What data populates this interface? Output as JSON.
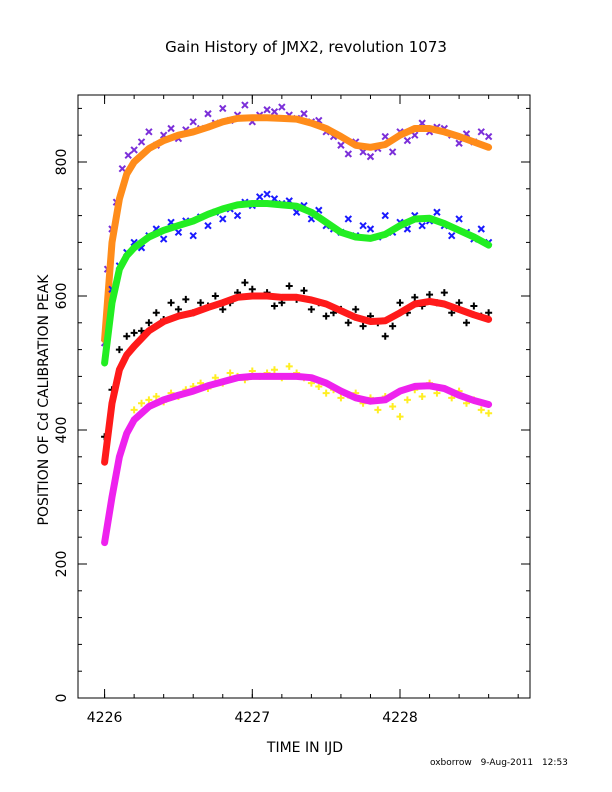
{
  "chart_data": {
    "type": "scatter",
    "title": "Gain History of JMX2, revolution 1073",
    "xlabel": "TIME IN IJD",
    "ylabel": "POSITION OF Cd CALIBRATION PEAK",
    "xlim": [
      4225.82,
      4228.88
    ],
    "ylim": [
      0,
      900
    ],
    "x_ticks": [
      4226,
      4227,
      4228
    ],
    "y_ticks": [
      0,
      200,
      400,
      600,
      800
    ],
    "grid": false,
    "legend": "none",
    "footer": {
      "user": "oxborrow",
      "date": "9-Aug-2011",
      "time": "12:53"
    },
    "series": [
      {
        "color": "#7b2fd9",
        "marker": "x",
        "role": "points",
        "x": [
          4226.0,
          4226.02,
          4226.05,
          4226.08,
          4226.12,
          4226.16,
          4226.2,
          4226.25,
          4226.3,
          4226.35,
          4226.4,
          4226.45,
          4226.5,
          4226.55,
          4226.6,
          4226.65,
          4226.7,
          4226.75,
          4226.8,
          4226.85,
          4226.9,
          4226.95,
          4227.0,
          4227.05,
          4227.1,
          4227.15,
          4227.2,
          4227.25,
          4227.3,
          4227.35,
          4227.4,
          4227.45,
          4227.5,
          4227.55,
          4227.6,
          4227.65,
          4227.7,
          4227.75,
          4227.8,
          4227.85,
          4227.9,
          4227.95,
          4228.0,
          4228.05,
          4228.1,
          4228.15,
          4228.2,
          4228.25,
          4228.3,
          4228.35,
          4228.4,
          4228.45,
          4228.5,
          4228.55,
          4228.6
        ],
        "y": [
          530,
          640,
          700,
          740,
          790,
          810,
          818,
          830,
          845,
          825,
          840,
          850,
          835,
          848,
          860,
          850,
          872,
          858,
          880,
          862,
          870,
          885,
          860,
          870,
          878,
          875,
          882,
          870,
          865,
          872,
          860,
          862,
          845,
          838,
          825,
          812,
          830,
          815,
          808,
          820,
          838,
          815,
          845,
          832,
          840,
          858,
          845,
          852,
          850,
          840,
          828,
          842,
          830,
          845,
          838
        ]
      },
      {
        "color": "#ff8c1a",
        "marker": "line",
        "role": "fit",
        "x": [
          4226.0,
          4226.05,
          4226.1,
          4226.15,
          4226.2,
          4226.3,
          4226.4,
          4226.5,
          4226.6,
          4226.7,
          4226.8,
          4226.9,
          4227.0,
          4227.1,
          4227.2,
          4227.3,
          4227.4,
          4227.5,
          4227.6,
          4227.7,
          4227.8,
          4227.9,
          4228.0,
          4228.1,
          4228.2,
          4228.3,
          4228.4,
          4228.5,
          4228.6
        ],
        "y": [
          535,
          680,
          745,
          782,
          800,
          820,
          832,
          840,
          845,
          852,
          860,
          865,
          866,
          866,
          865,
          864,
          858,
          850,
          838,
          825,
          822,
          826,
          840,
          850,
          850,
          845,
          838,
          830,
          822
        ]
      },
      {
        "color": "#1a1aff",
        "marker": "x",
        "role": "points",
        "x": [
          4226.05,
          4226.1,
          4226.15,
          4226.2,
          4226.25,
          4226.3,
          4226.35,
          4226.4,
          4226.45,
          4226.5,
          4226.55,
          4226.6,
          4226.65,
          4226.7,
          4226.75,
          4226.8,
          4226.85,
          4226.9,
          4226.95,
          4227.0,
          4227.05,
          4227.1,
          4227.15,
          4227.2,
          4227.25,
          4227.3,
          4227.35,
          4227.4,
          4227.45,
          4227.5,
          4227.55,
          4227.6,
          4227.65,
          4227.7,
          4227.75,
          4227.8,
          4227.85,
          4227.9,
          4227.95,
          4228.0,
          4228.05,
          4228.1,
          4228.15,
          4228.2,
          4228.25,
          4228.3,
          4228.35,
          4228.4,
          4228.45,
          4228.5,
          4228.55,
          4228.6
        ],
        "y": [
          610,
          645,
          665,
          680,
          672,
          690,
          700,
          685,
          710,
          695,
          712,
          690,
          718,
          705,
          725,
          715,
          730,
          720,
          740,
          735,
          748,
          752,
          745,
          738,
          742,
          725,
          735,
          715,
          728,
          705,
          700,
          695,
          715,
          690,
          705,
          700,
          688,
          720,
          695,
          710,
          700,
          720,
          705,
          712,
          725,
          705,
          690,
          715,
          695,
          685,
          700,
          680
        ]
      },
      {
        "color": "#22ee22",
        "marker": "line",
        "role": "fit",
        "x": [
          4226.0,
          4226.05,
          4226.1,
          4226.15,
          4226.2,
          4226.3,
          4226.4,
          4226.5,
          4226.6,
          4226.7,
          4226.8,
          4226.9,
          4227.0,
          4227.1,
          4227.2,
          4227.3,
          4227.4,
          4227.5,
          4227.6,
          4227.7,
          4227.8,
          4227.9,
          4228.0,
          4228.1,
          4228.2,
          4228.3,
          4228.4,
          4228.5,
          4228.6
        ],
        "y": [
          500,
          590,
          640,
          660,
          672,
          688,
          698,
          705,
          712,
          722,
          730,
          736,
          738,
          738,
          736,
          734,
          725,
          710,
          695,
          688,
          686,
          692,
          705,
          715,
          716,
          708,
          698,
          688,
          676
        ]
      },
      {
        "color": "#000000",
        "marker": "+",
        "role": "points",
        "x": [
          4226.0,
          4226.05,
          4226.1,
          4226.15,
          4226.2,
          4226.25,
          4226.3,
          4226.35,
          4226.4,
          4226.45,
          4226.5,
          4226.55,
          4226.6,
          4226.65,
          4226.7,
          4226.75,
          4226.8,
          4226.85,
          4226.9,
          4226.95,
          4227.0,
          4227.05,
          4227.1,
          4227.15,
          4227.2,
          4227.25,
          4227.3,
          4227.35,
          4227.4,
          4227.45,
          4227.5,
          4227.55,
          4227.6,
          4227.65,
          4227.7,
          4227.75,
          4227.8,
          4227.85,
          4227.9,
          4227.95,
          4228.0,
          4228.05,
          4228.1,
          4228.15,
          4228.2,
          4228.25,
          4228.3,
          4228.35,
          4228.4,
          4228.45,
          4228.5,
          4228.55,
          4228.6
        ],
        "y": [
          390,
          460,
          520,
          540,
          545,
          548,
          560,
          575,
          565,
          590,
          580,
          595,
          575,
          590,
          585,
          600,
          580,
          590,
          605,
          620,
          610,
          600,
          605,
          585,
          590,
          615,
          595,
          608,
          580,
          590,
          570,
          575,
          580,
          560,
          580,
          555,
          570,
          560,
          540,
          555,
          590,
          575,
          598,
          585,
          602,
          590,
          605,
          575,
          590,
          560,
          585,
          570,
          575
        ]
      },
      {
        "color": "#ff1a1a",
        "marker": "line",
        "role": "fit",
        "x": [
          4226.0,
          4226.05,
          4226.1,
          4226.15,
          4226.2,
          4226.3,
          4226.4,
          4226.5,
          4226.6,
          4226.7,
          4226.8,
          4226.9,
          4227.0,
          4227.1,
          4227.2,
          4227.3,
          4227.4,
          4227.5,
          4227.6,
          4227.7,
          4227.8,
          4227.9,
          4228.0,
          4228.1,
          4228.2,
          4228.3,
          4228.4,
          4228.5,
          4228.6
        ],
        "y": [
          352,
          440,
          490,
          512,
          525,
          548,
          562,
          570,
          575,
          583,
          590,
          598,
          600,
          600,
          598,
          598,
          594,
          588,
          578,
          568,
          562,
          563,
          575,
          588,
          592,
          588,
          580,
          572,
          565
        ]
      },
      {
        "color": "#ffee22",
        "marker": "+",
        "role": "points",
        "x": [
          4226.2,
          4226.25,
          4226.3,
          4226.35,
          4226.4,
          4226.45,
          4226.5,
          4226.55,
          4226.6,
          4226.65,
          4226.7,
          4226.75,
          4226.8,
          4226.85,
          4226.9,
          4226.95,
          4227.0,
          4227.05,
          4227.1,
          4227.15,
          4227.2,
          4227.25,
          4227.3,
          4227.35,
          4227.4,
          4227.45,
          4227.5,
          4227.55,
          4227.6,
          4227.65,
          4227.7,
          4227.75,
          4227.8,
          4227.85,
          4227.9,
          4227.95,
          4228.0,
          4228.05,
          4228.1,
          4228.15,
          4228.2,
          4228.25,
          4228.3,
          4228.35,
          4228.4,
          4228.45,
          4228.5,
          4228.55,
          4228.6
        ],
        "y": [
          430,
          440,
          445,
          450,
          442,
          455,
          450,
          460,
          465,
          470,
          462,
          478,
          470,
          485,
          480,
          475,
          488,
          480,
          485,
          490,
          478,
          495,
          485,
          478,
          470,
          465,
          455,
          460,
          448,
          452,
          455,
          440,
          448,
          430,
          450,
          435,
          420,
          445,
          460,
          450,
          470,
          455,
          462,
          448,
          458,
          440,
          445,
          430,
          425
        ]
      },
      {
        "color": "#ee22ee",
        "marker": "line",
        "role": "fit",
        "x": [
          4226.0,
          4226.05,
          4226.1,
          4226.15,
          4226.2,
          4226.3,
          4226.4,
          4226.5,
          4226.6,
          4226.7,
          4226.8,
          4226.9,
          4227.0,
          4227.1,
          4227.2,
          4227.3,
          4227.4,
          4227.5,
          4227.6,
          4227.7,
          4227.8,
          4227.9,
          4228.0,
          4228.1,
          4228.2,
          4228.3,
          4228.4,
          4228.5,
          4228.6
        ],
        "y": [
          232,
          300,
          360,
          395,
          415,
          435,
          445,
          452,
          458,
          466,
          472,
          478,
          480,
          480,
          480,
          480,
          478,
          470,
          458,
          448,
          443,
          445,
          458,
          465,
          466,
          462,
          452,
          444,
          438
        ]
      }
    ]
  }
}
